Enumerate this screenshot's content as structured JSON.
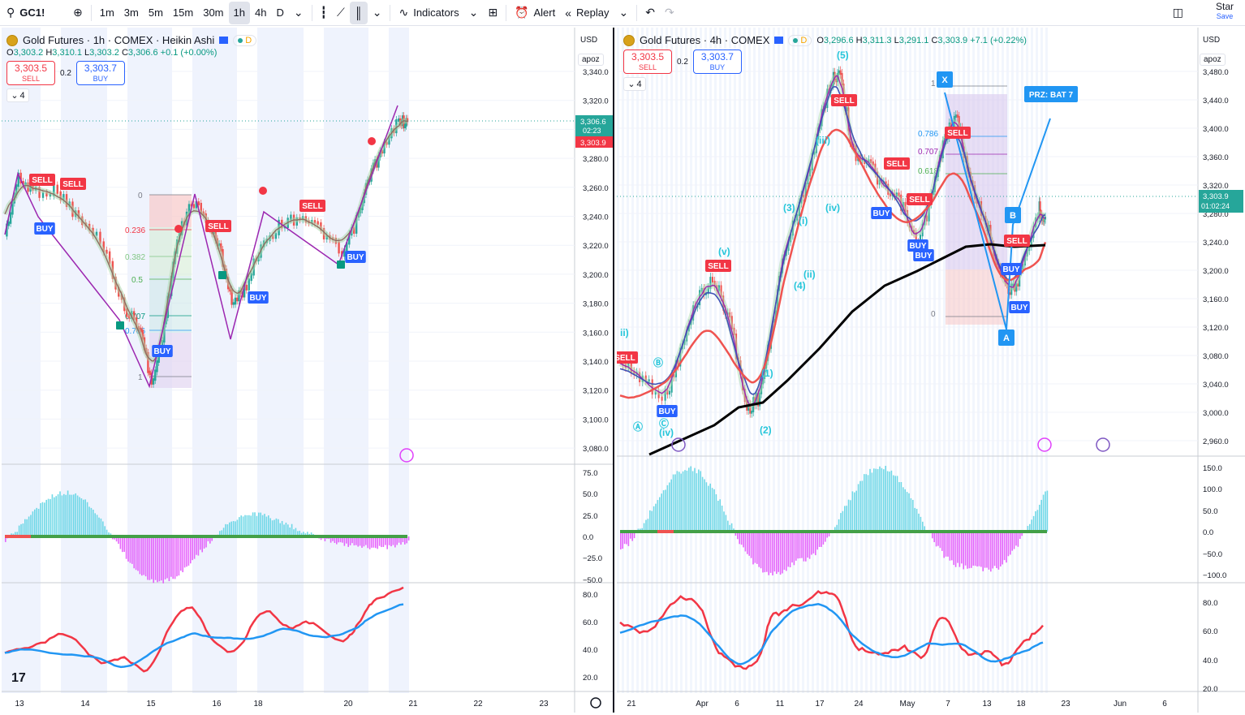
{
  "toolbar": {
    "symbol": "GC1!",
    "intervals": [
      "1m",
      "3m",
      "5m",
      "15m",
      "30m",
      "1h",
      "4h",
      "D"
    ],
    "active_interval": "1h",
    "indicators_label": "Indicators",
    "alert_label": "Alert",
    "replay_label": "Replay",
    "star_label": "Star",
    "save_label": "Save"
  },
  "left": {
    "title": "Gold Futures · 1h · COMEX · Heikin Ashi",
    "d_badge": "D",
    "ohlc": {
      "o": "3,303.2",
      "h": "3,310.1",
      "l": "3,303.2",
      "c": "3,306.6",
      "chg": "+0.1 (+0.00%)"
    },
    "sell_price": "3,303.5",
    "sell_label": "SELL",
    "spread": "0.2",
    "buy_price": "3,303.7",
    "buy_label": "BUY",
    "collapse_count": "4",
    "currency": "USD",
    "scale_mode": "apoz",
    "price_ticks": [
      "3,340.0",
      "3,320.0",
      "3,300.0",
      "3,280.0",
      "3,260.0",
      "3,240.0",
      "3,220.0",
      "3,200.0",
      "3,180.0",
      "3,160.0",
      "3,140.0",
      "3,120.0",
      "3,100.0",
      "3,080.0"
    ],
    "last_price": "3,306.6",
    "countdown": "02:23",
    "bid_price": "3,303.9",
    "fib_levels": [
      "0",
      "0.236",
      "0.382",
      "0.5",
      "0.707",
      "0.786",
      "1"
    ],
    "labels": {
      "sell": "SELL",
      "buy": "BUY"
    },
    "osc_ticks": [
      "75.0",
      "50.0",
      "25.0",
      "0.0",
      "−25.0",
      "−50.0"
    ],
    "rsi_ticks": [
      "80.0",
      "60.0",
      "40.0",
      "20.0"
    ],
    "time_ticks": [
      "13",
      "14",
      "15",
      "16",
      "18",
      "20",
      "21",
      "22",
      "23"
    ]
  },
  "right": {
    "title": "Gold Futures · 4h · COMEX",
    "d_badge": "D",
    "ohlc": {
      "o": "3,296.6",
      "h": "3,311.3",
      "l": "3,291.1",
      "c": "3,303.9",
      "chg": "+7.1 (+0.22%)"
    },
    "sell_price": "3,303.5",
    "sell_label": "SELL",
    "spread": "0.2",
    "buy_price": "3,303.7",
    "buy_label": "BUY",
    "collapse_count": "4",
    "currency": "USD",
    "scale_mode": "apoz",
    "price_ticks": [
      "3,480.0",
      "3,440.0",
      "3,400.0",
      "3,360.0",
      "3,320.0",
      "3,280.0",
      "3,240.0",
      "3,200.0",
      "3,160.0",
      "3,120.0",
      "3,080.0",
      "3,040.0",
      "3,000.0",
      "2,960.0"
    ],
    "last_price": "3,303.9",
    "countdown": "01:02:24",
    "prz_label": "PRZ: BAT 7",
    "xabcd": [
      "X",
      "A",
      "B"
    ],
    "fib_levels": [
      "1",
      "0.786",
      "0.707",
      "0.618",
      "0"
    ],
    "waves": [
      "(5)",
      "(iii)",
      "(3)",
      "(i)",
      "(iv)",
      "(v)",
      "(4)",
      "(ii)",
      "(1)",
      "(2)",
      "(iv)",
      "ii)",
      "Ⓑ",
      "Ⓐ",
      "Ⓒ"
    ],
    "osc_ticks": [
      "150.0",
      "100.0",
      "50.0",
      "0.0",
      "−50.0",
      "−100.0"
    ],
    "rsi_ticks": [
      "80.0",
      "60.0",
      "40.0",
      "20.0"
    ],
    "time_ticks": [
      "21",
      "Apr",
      "6",
      "11",
      "17",
      "24",
      "May",
      "7",
      "13",
      "18",
      "23",
      "Jun",
      "6"
    ]
  },
  "colors": {
    "up": "#26a69a",
    "down": "#ef5350",
    "sell": "#f23645",
    "buy": "#2962ff",
    "zigzag": "#9c27b0",
    "macd_pos": "#4dd0e1",
    "macd_neg": "#e040fb",
    "rsi": "#f23645",
    "rsi_ma": "#2196f3"
  }
}
